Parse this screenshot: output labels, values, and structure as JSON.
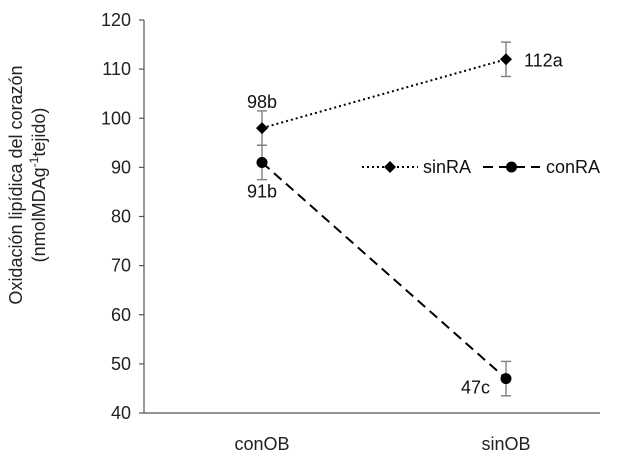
{
  "chart_data": {
    "type": "line",
    "categories": [
      "conOB",
      "sinOB"
    ],
    "ylabel_line1": "Oxidación lipídica del corazón",
    "ylabel_line2_a": "(nmolMDAg",
    "ylabel_line2_sup": "-1",
    "ylabel_line2_b": "tejido)",
    "ylim": [
      40,
      120
    ],
    "yticks": [
      40,
      50,
      60,
      70,
      80,
      90,
      100,
      110,
      120
    ],
    "grid": false,
    "legend_position": "right-middle",
    "series": [
      {
        "name": "sinRA",
        "marker": "diamond",
        "line_style": "dotted",
        "values": [
          98,
          112
        ],
        "errors": [
          3.5,
          3.5
        ],
        "labels": [
          "98b",
          "112a"
        ]
      },
      {
        "name": "conRA",
        "marker": "circle",
        "line_style": "dashed",
        "values": [
          91,
          47
        ],
        "errors": [
          3.5,
          3.5
        ],
        "labels": [
          "91b",
          "47c"
        ]
      }
    ],
    "colors": {
      "series": "#000000",
      "axis": "#555555",
      "error_bar": "#7f7f7f"
    }
  }
}
